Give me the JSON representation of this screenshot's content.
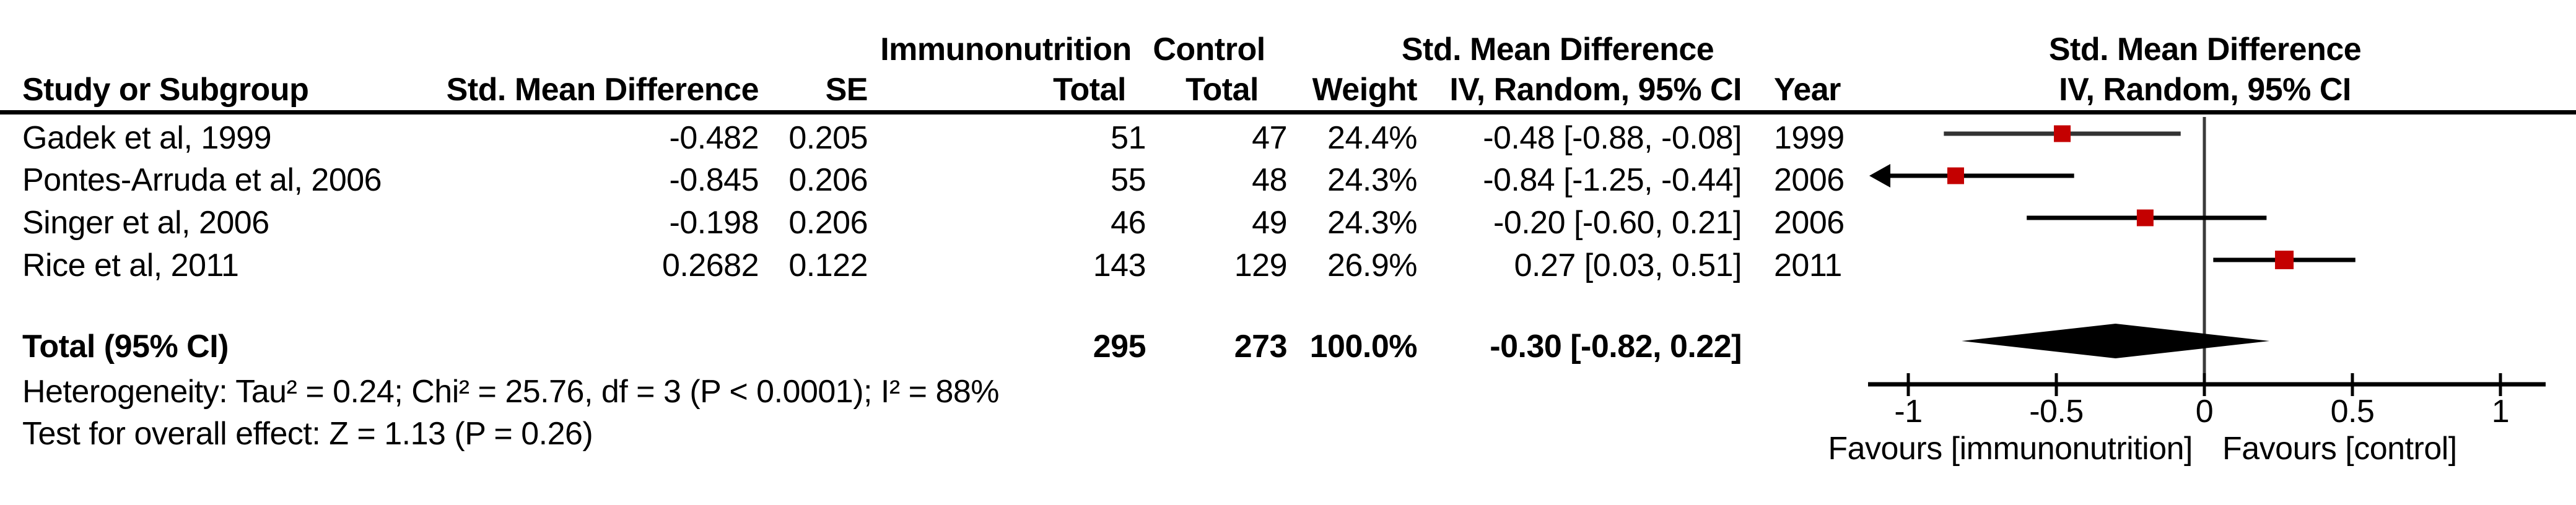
{
  "table": {
    "headers": {
      "group1": "Immunonutrition",
      "group2": "Control",
      "smd_col_line1": "Std. Mean Difference",
      "study": "Study or Subgroup",
      "smd": "Std. Mean Difference",
      "se": "SE",
      "total1": "Total",
      "total2": "Total",
      "weight": "Weight",
      "ci": "IV, Random, 95% CI",
      "year": "Year",
      "plot_line1": "Std. Mean Difference",
      "plot_line2": "IV, Random, 95% CI"
    },
    "rows": [
      {
        "study": "Gadek et al, 1999",
        "smd": "-0.482",
        "se": "0.205",
        "total1": "51",
        "total2": "47",
        "weight": "24.4%",
        "ci": "-0.48 [-0.88, -0.08]",
        "year": "1999"
      },
      {
        "study": "Pontes-Arruda et al, 2006",
        "smd": "-0.845",
        "se": "0.206",
        "total1": "55",
        "total2": "48",
        "weight": "24.3%",
        "ci": "-0.84 [-1.25, -0.44]",
        "year": "2006"
      },
      {
        "study": "Singer et al, 2006",
        "smd": "-0.198",
        "se": "0.206",
        "total1": "46",
        "total2": "49",
        "weight": "24.3%",
        "ci": "-0.20 [-0.60, 0.21]",
        "year": "2006"
      },
      {
        "study": "Rice et al, 2011",
        "smd": "0.2682",
        "se": "0.122",
        "total1": "143",
        "total2": "129",
        "weight": "26.9%",
        "ci": "0.27 [0.03, 0.51]",
        "year": "2011"
      }
    ],
    "total_row": {
      "label": "Total (95% CI)",
      "total1": "295",
      "total2": "273",
      "weight": "100.0%",
      "ci": "-0.30 [-0.82, 0.22]"
    },
    "footer": {
      "heterogeneity": "Heterogeneity: Tau² = 0.24; Chi² = 25.76, df = 3 (P < 0.0001); I² = 88%",
      "overall_effect": "Test for overall effect: Z = 1.13 (P = 0.26)"
    }
  },
  "chart_data": {
    "type": "forest",
    "effect_measure": "Std. Mean Difference, IV, Random, 95% CI",
    "studies": [
      {
        "name": "Gadek et al, 1999",
        "year": 1999,
        "smd": -0.482,
        "se": 0.205,
        "n_immunonutrition": 51,
        "n_control": 47,
        "weight_pct": 24.4,
        "est": -0.48,
        "lo": -0.88,
        "hi": -0.08
      },
      {
        "name": "Pontes-Arruda et al, 2006",
        "year": 2006,
        "smd": -0.845,
        "se": 0.206,
        "n_immunonutrition": 55,
        "n_control": 48,
        "weight_pct": 24.3,
        "est": -0.84,
        "lo": -1.25,
        "hi": -0.44
      },
      {
        "name": "Singer et al, 2006",
        "year": 2006,
        "smd": -0.198,
        "se": 0.206,
        "n_immunonutrition": 46,
        "n_control": 49,
        "weight_pct": 24.3,
        "est": -0.2,
        "lo": -0.6,
        "hi": 0.21
      },
      {
        "name": "Rice et al, 2011",
        "year": 2011,
        "smd": 0.2682,
        "se": 0.122,
        "n_immunonutrition": 143,
        "n_control": 129,
        "weight_pct": 26.9,
        "est": 0.27,
        "lo": 0.03,
        "hi": 0.51
      }
    ],
    "total": {
      "n_immunonutrition": 295,
      "n_control": 273,
      "weight_pct": 100.0,
      "est": -0.3,
      "lo": -0.82,
      "hi": 0.22
    },
    "axis": {
      "min": -1,
      "max": 1,
      "ticks": [
        -1,
        -0.5,
        0,
        0.5,
        1
      ]
    },
    "xlabel_left": "Favours [immunonutrition]",
    "xlabel_right": "Favours [control]",
    "marker_color": "#C40000",
    "diamond_color": "#000000",
    "line_color": "#000000"
  }
}
